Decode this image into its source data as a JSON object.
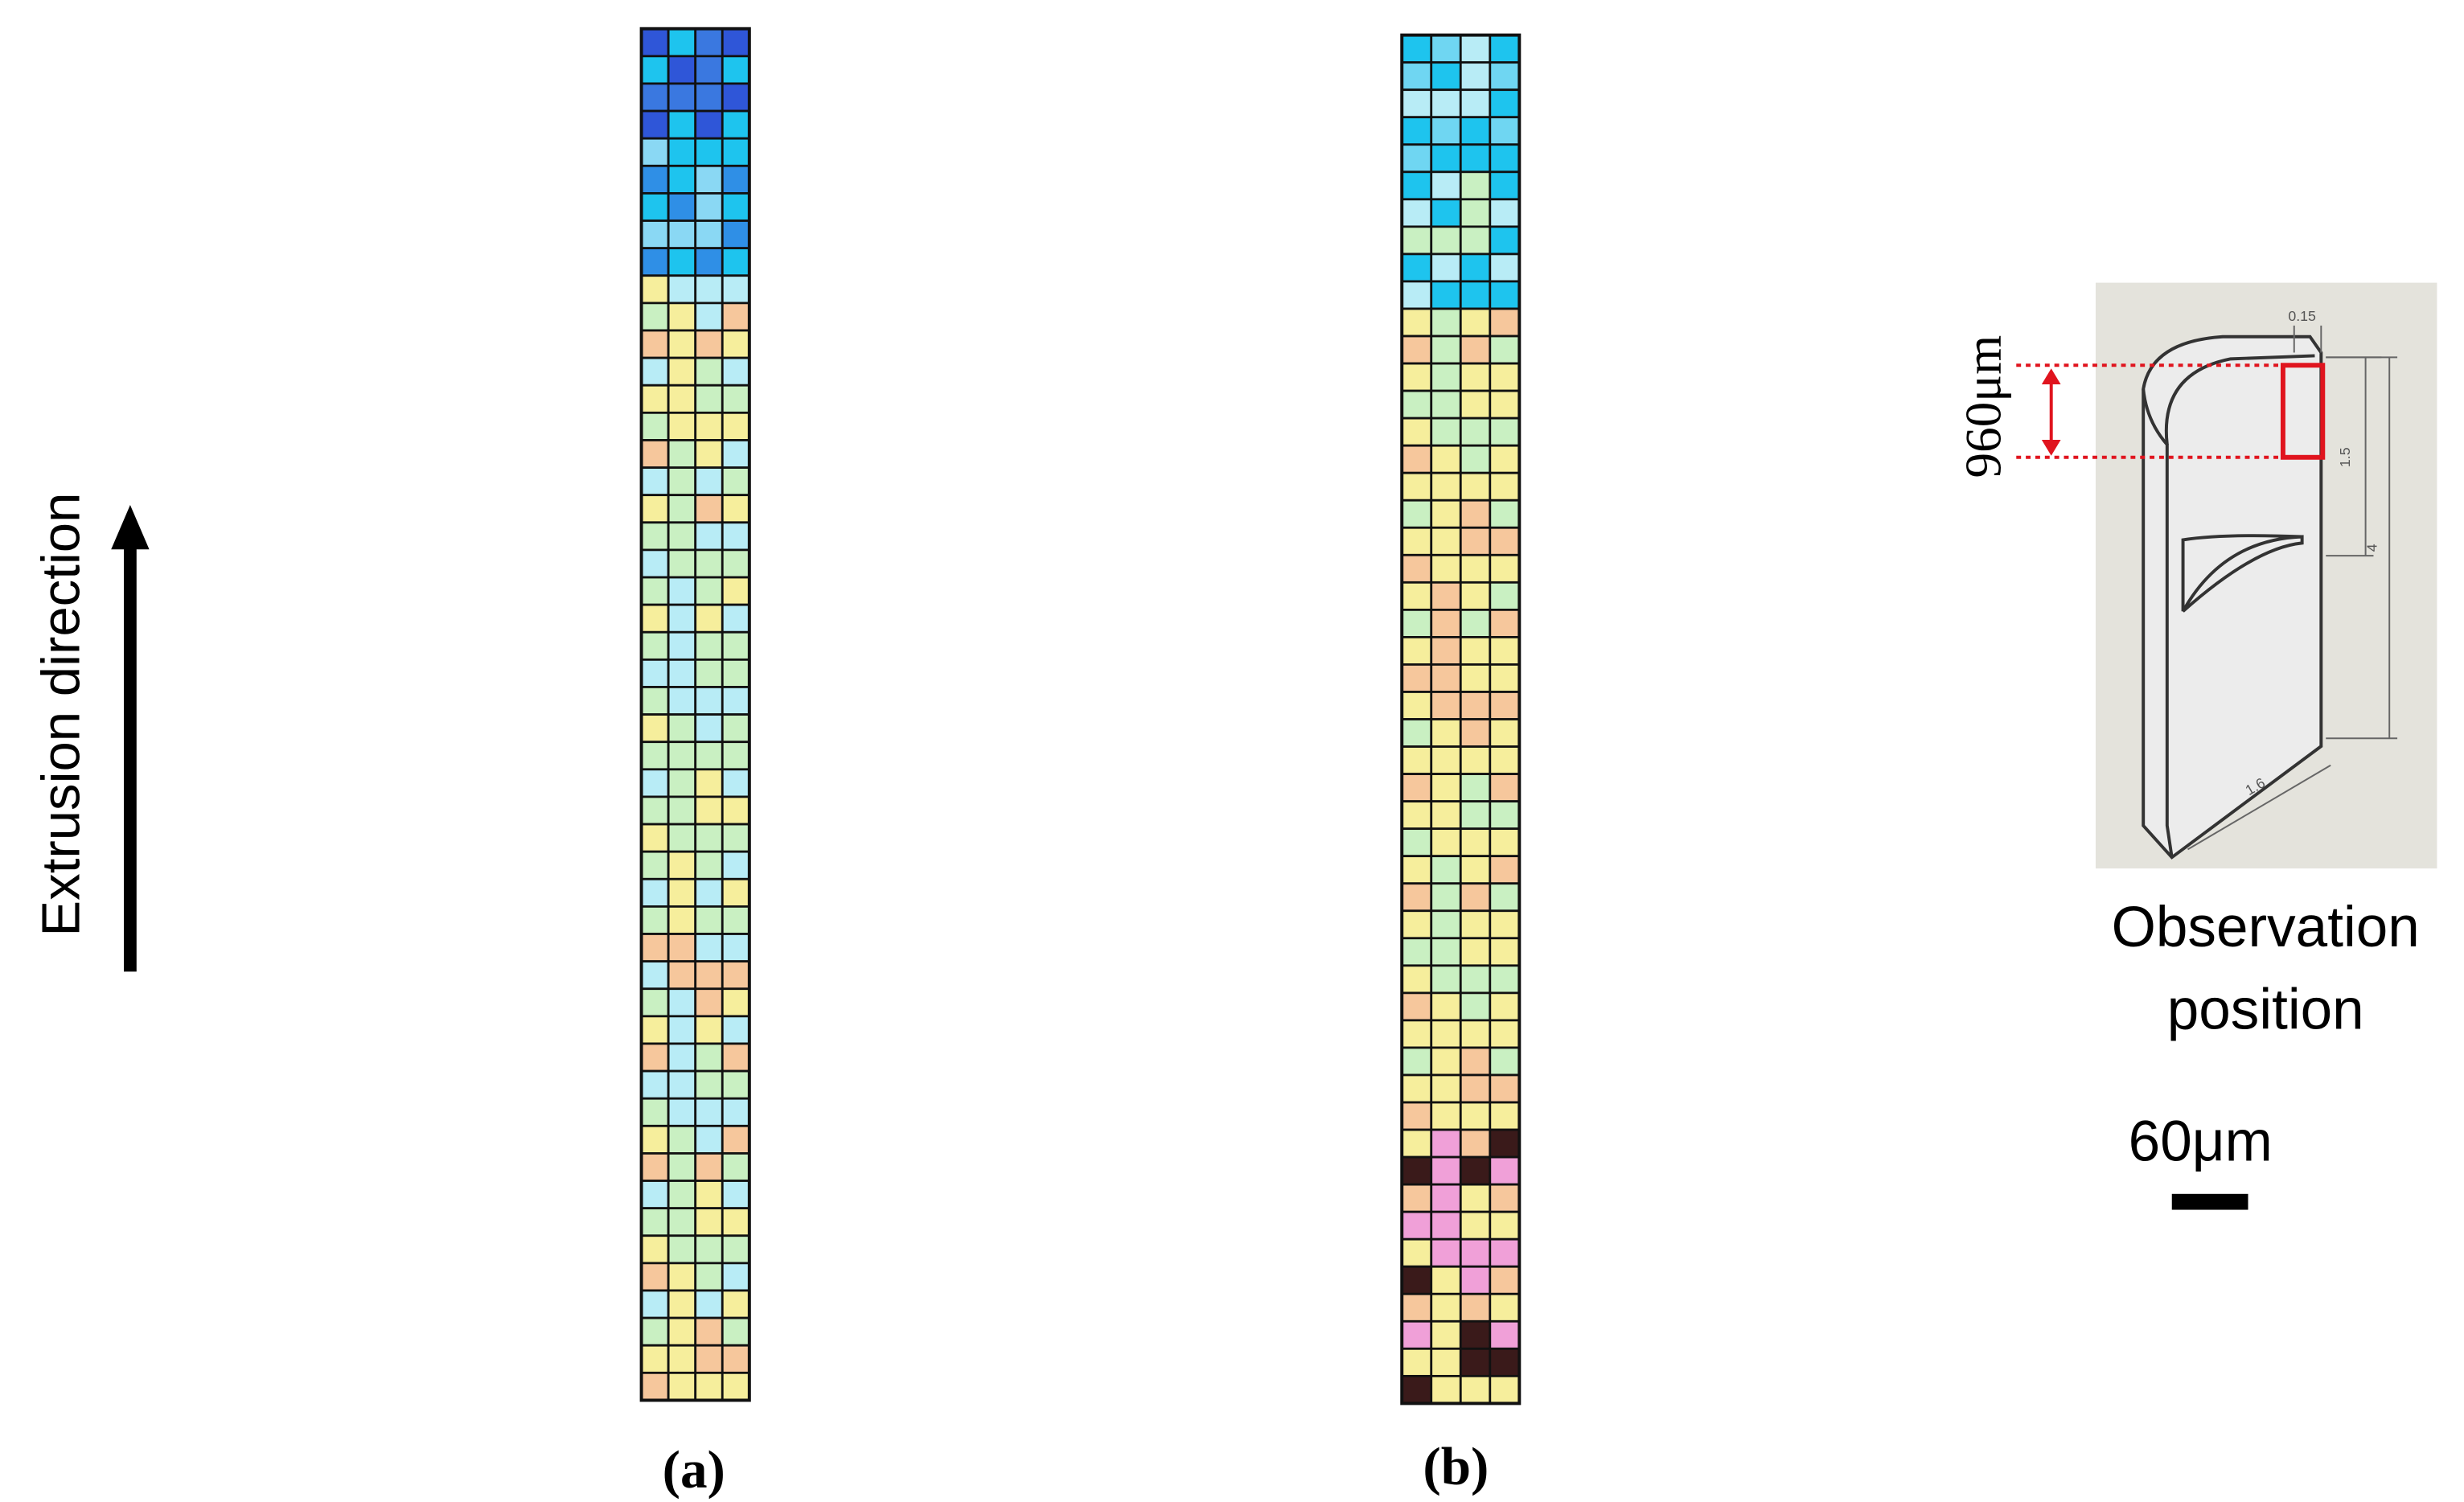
{
  "labels": {
    "direction": "Extrusion direction",
    "panel_a": "(a)",
    "panel_b": "(b)",
    "dimension": "960μm",
    "observation": [
      "Observation",
      "position"
    ],
    "scale_bar": "60μm",
    "drawing_dims": [
      "0.15",
      "1.5",
      "4",
      "1.6"
    ]
  }
}
